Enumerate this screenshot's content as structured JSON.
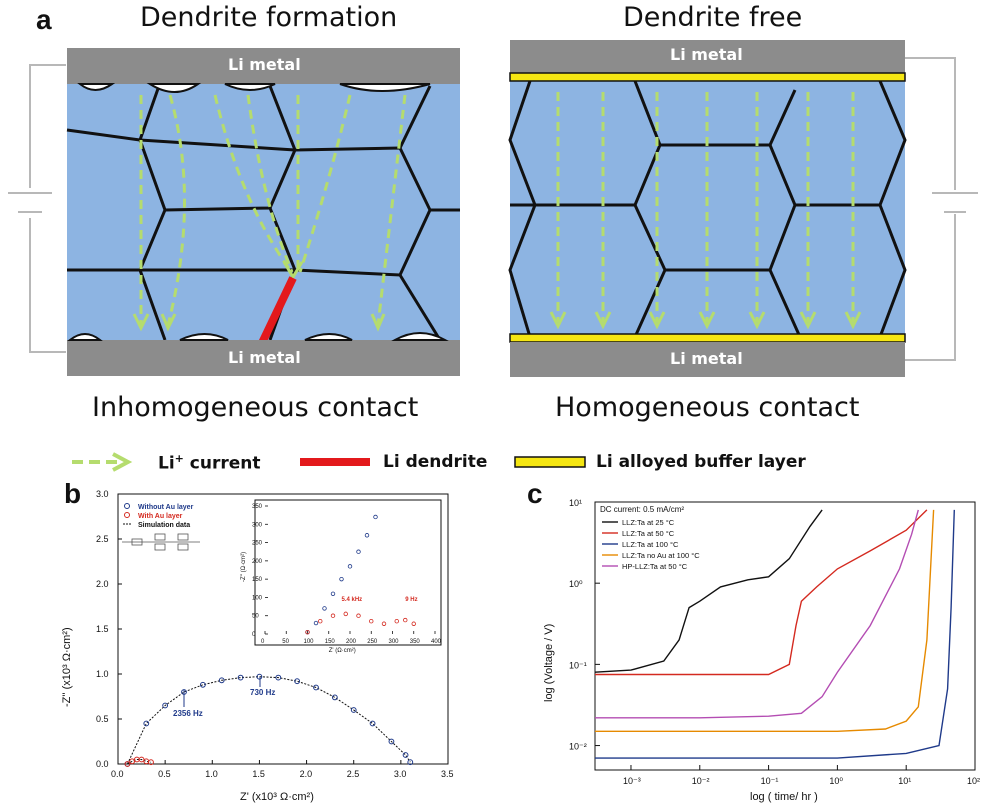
{
  "panel_a": {
    "letter": "a",
    "left_title": "Dendrite formation",
    "right_title": "Dendrite free",
    "li_metal": "Li metal",
    "left_caption": "Inhomogeneous contact",
    "right_caption": "Homogeneous contact",
    "legend": {
      "current_prefix": "Li",
      "current_sup": "+",
      "current_suffix": " current",
      "dendrite": "Li dendrite",
      "buffer": "Li alloyed buffer layer"
    },
    "colors": {
      "grain": "#8db4e2",
      "metal": "#8c8c8c",
      "current_arrow": "#b5dc6e",
      "dendrite": "#e3191c",
      "buffer": "#f5e612"
    }
  },
  "panel_b": {
    "letter": "b",
    "xlabel": "Z' (x10³ Ω·cm²)",
    "ylabel": "-Z'' (x10³ Ω·cm²)",
    "xticks": [
      "0.0",
      "0.5",
      "1.0",
      "1.5",
      "2.0",
      "2.5",
      "3.0",
      "3.5"
    ],
    "yticks": [
      "0.0",
      "0.5",
      "1.0",
      "1.5",
      "2.0",
      "2.5",
      "3.0"
    ],
    "legend": [
      "Without Au layer",
      "With Au layer",
      "Simulation data"
    ],
    "annotations": [
      "2356 Hz",
      "730 Hz"
    ],
    "inset": {
      "xlabel": "Z' (Ω·cm²)",
      "ylabel": "-Z'' (Ω·cm²)",
      "xticks": [
        "0",
        "50",
        "100",
        "150",
        "200",
        "250",
        "300",
        "350",
        "400"
      ],
      "yticks": [
        "0",
        "50",
        "100",
        "150",
        "200",
        "250",
        "300",
        "350"
      ],
      "annotations": [
        "5.4 kHz",
        "9 Hz"
      ]
    },
    "chart_data": {
      "type": "scatter",
      "xlim": [
        0,
        3.5
      ],
      "ylim": [
        0,
        3.0
      ],
      "series": [
        {
          "name": "Without Au layer",
          "x": [
            0.1,
            0.3,
            0.5,
            0.7,
            0.9,
            1.1,
            1.3,
            1.5,
            1.7,
            1.9,
            2.1,
            2.3,
            2.5,
            2.7,
            2.9,
            3.05,
            3.1
          ],
          "y": [
            0.0,
            0.45,
            0.65,
            0.8,
            0.88,
            0.93,
            0.96,
            0.97,
            0.96,
            0.92,
            0.85,
            0.74,
            0.6,
            0.45,
            0.25,
            0.1,
            0.02
          ]
        },
        {
          "name": "With Au layer",
          "x": [
            0.1,
            0.15,
            0.2,
            0.25,
            0.3,
            0.35
          ],
          "y": [
            0.0,
            0.03,
            0.05,
            0.05,
            0.03,
            0.02
          ]
        }
      ]
    }
  },
  "panel_c": {
    "letter": "c",
    "xlabel": "log ( time/ hr )",
    "ylabel": "log (Voltage / V)",
    "title_note": "DC current: 0.5 mA/cm²",
    "xticks": [
      "10⁻³",
      "10⁻²",
      "10⁻¹",
      "10⁰",
      "10¹",
      "10²"
    ],
    "yticks": [
      "10⁻²",
      "10⁻¹",
      "10⁰",
      "10¹"
    ],
    "chart_data": {
      "type": "line",
      "xscale": "log",
      "yscale": "log",
      "xlim": [
        0.0003,
        100
      ],
      "ylim": [
        0.005,
        10
      ],
      "series": [
        {
          "name": "LLZ:Ta at 25 °C",
          "color": "#111111",
          "x": [
            0.0003,
            0.001,
            0.003,
            0.005,
            0.007,
            0.01,
            0.02,
            0.05,
            0.1,
            0.2,
            0.4,
            0.6
          ],
          "y": [
            0.08,
            0.085,
            0.11,
            0.2,
            0.5,
            0.6,
            0.9,
            1.1,
            1.2,
            2.0,
            5.0,
            8.0
          ]
        },
        {
          "name": "LLZ:Ta at 50 °C",
          "color": "#d42a20",
          "x": [
            0.0003,
            0.001,
            0.01,
            0.1,
            0.2,
            0.25,
            0.3,
            0.5,
            1,
            3,
            10,
            20
          ],
          "y": [
            0.075,
            0.075,
            0.075,
            0.075,
            0.1,
            0.3,
            0.6,
            0.9,
            1.5,
            2.5,
            4.5,
            8.0
          ]
        },
        {
          "name": "LLZ:Ta at 100 °C",
          "color": "#1f3a8a",
          "x": [
            0.0003,
            0.01,
            1,
            10,
            30,
            40,
            45,
            50
          ],
          "y": [
            0.007,
            0.007,
            0.007,
            0.008,
            0.01,
            0.05,
            0.5,
            8.0
          ]
        },
        {
          "name": "LLZ:Ta no Au at 100 °C",
          "color": "#e68a00",
          "x": [
            0.0003,
            0.01,
            1,
            5,
            10,
            15,
            20,
            25
          ],
          "y": [
            0.015,
            0.015,
            0.015,
            0.016,
            0.02,
            0.03,
            0.2,
            8.0
          ]
        },
        {
          "name": "HP-LLZ:Ta at 50 °C",
          "color": "#b44db3",
          "x": [
            0.0003,
            0.01,
            0.1,
            0.3,
            0.6,
            1,
            3,
            8,
            12,
            15
          ],
          "y": [
            0.022,
            0.022,
            0.023,
            0.025,
            0.04,
            0.08,
            0.3,
            1.5,
            4.0,
            8.0
          ]
        }
      ]
    }
  }
}
